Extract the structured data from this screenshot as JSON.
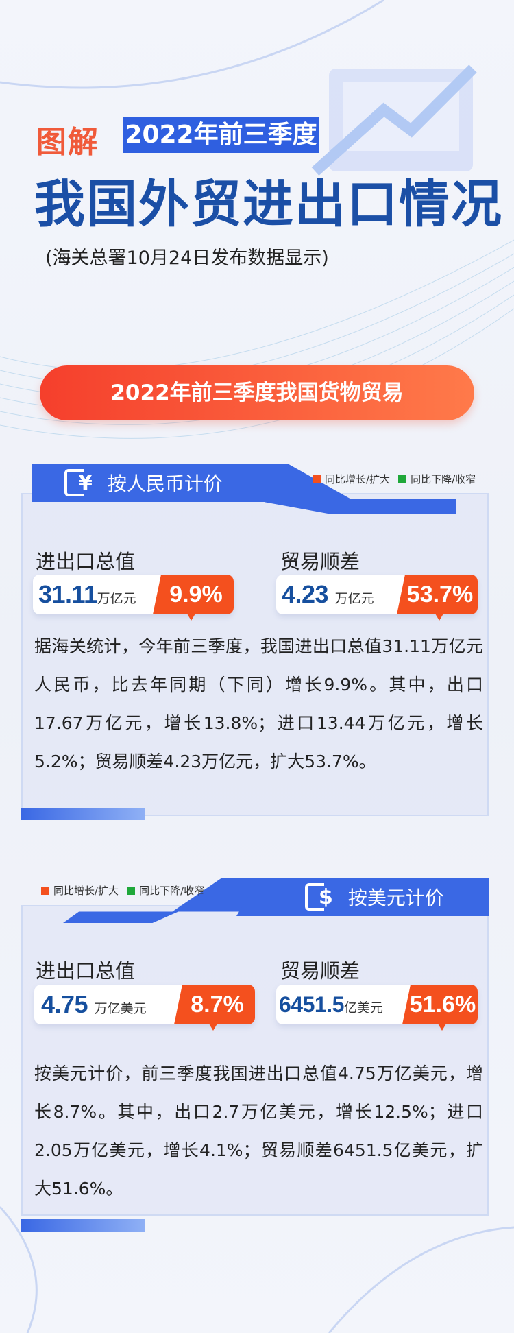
{
  "header": {
    "tag": "图解",
    "period": "2022年前三季度",
    "title": "我国外贸进出口情况",
    "subtitle": "(海关总署10月24日发布数据显示)"
  },
  "banner": "2022年前三季度我国货物贸易",
  "legend": {
    "up": "同比增长/扩大",
    "down": "同比下降/收窄",
    "up_color": "#f4501e",
    "down_color": "#1fa83a"
  },
  "rmb": {
    "title": "按人民币计价",
    "icon": "yuan-icon",
    "total": {
      "label": "进出口总值",
      "value": "31.11",
      "unit": "万亿元",
      "change": "9.9%"
    },
    "surplus": {
      "label": "贸易顺差",
      "value": "4.23",
      "unit": "万亿元",
      "change": "53.7%"
    },
    "text": "据海关统计，今年前三季度，我国进出口总值31.11万亿元人民币，比去年同期（下同）增长9.9%。其中，出口17.67万亿元，增长13.8%；进口13.44万亿元，增长5.2%；贸易顺差4.23万亿元，扩大53.7%。"
  },
  "usd": {
    "title": "按美元计价",
    "icon": "dollar-icon",
    "total": {
      "label": "进出口总值",
      "value": "4.75",
      "unit": "万亿美元",
      "change": "8.7%"
    },
    "surplus": {
      "label": "贸易顺差",
      "value": "6451.5",
      "unit": "亿美元",
      "change": "51.6%"
    },
    "text": "按美元计价，前三季度我国进出口总值4.75万亿美元，增长8.7%。其中，出口2.7万亿美元，增长12.5%；进口2.05万亿美元，增长4.1%；贸易顺差6451.5亿美元，扩大51.6%。"
  }
}
